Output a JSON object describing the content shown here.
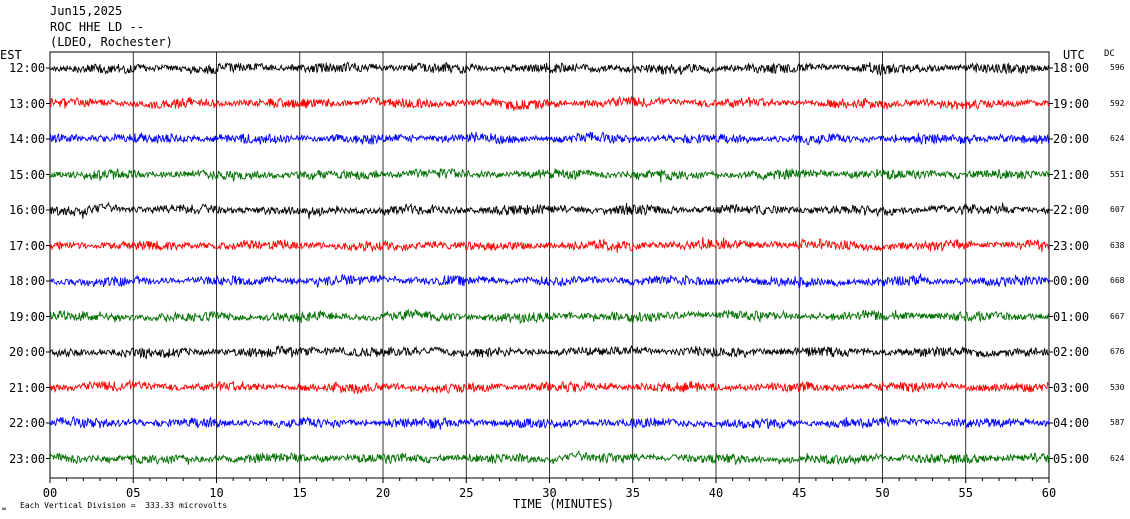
{
  "header": {
    "date": "Jun15,2025",
    "station": "ROC HHE LD --",
    "network": "(LDEO, Rochester)"
  },
  "left_axis_title": "EST",
  "right_axis_title": "UTC",
  "dc_title": "DC",
  "scale_note": "Each Vertical Division =  333.33 microvolts",
  "logo_text": "∞",
  "chart_data": {
    "type": "line",
    "title": "ROC HHE LD --",
    "xlabel": "TIME (MINUTES)",
    "xlim": [
      0,
      60
    ],
    "x_ticks": [
      "00",
      "05",
      "10",
      "15",
      "20",
      "25",
      "30",
      "35",
      "40",
      "45",
      "50",
      "55",
      "60"
    ],
    "grid": "vertical lines every 5 minutes",
    "colors": [
      "#000000",
      "#ff0000",
      "#0000ff",
      "#007000"
    ],
    "rows": [
      {
        "est": "12:00",
        "utc": "18:00",
        "dc": "596",
        "color": "#000000"
      },
      {
        "est": "13:00",
        "utc": "19:00",
        "dc": "592",
        "color": "#ff0000"
      },
      {
        "est": "14:00",
        "utc": "20:00",
        "dc": "624",
        "color": "#0000ff"
      },
      {
        "est": "15:00",
        "utc": "21:00",
        "dc": "551",
        "color": "#007000"
      },
      {
        "est": "16:00",
        "utc": "22:00",
        "dc": "607",
        "color": "#000000"
      },
      {
        "est": "17:00",
        "utc": "23:00",
        "dc": "638",
        "color": "#ff0000"
      },
      {
        "est": "18:00",
        "utc": "00:00",
        "dc": "668",
        "color": "#0000ff"
      },
      {
        "est": "19:00",
        "utc": "01:00",
        "dc": "667",
        "color": "#007000"
      },
      {
        "est": "20:00",
        "utc": "02:00",
        "dc": "676",
        "color": "#000000"
      },
      {
        "est": "21:00",
        "utc": "03:00",
        "dc": "530",
        "color": "#ff0000"
      },
      {
        "est": "22:00",
        "utc": "04:00",
        "dc": "587",
        "color": "#0000ff"
      },
      {
        "est": "23:00",
        "utc": "05:00",
        "dc": "624",
        "color": "#007000"
      }
    ]
  }
}
